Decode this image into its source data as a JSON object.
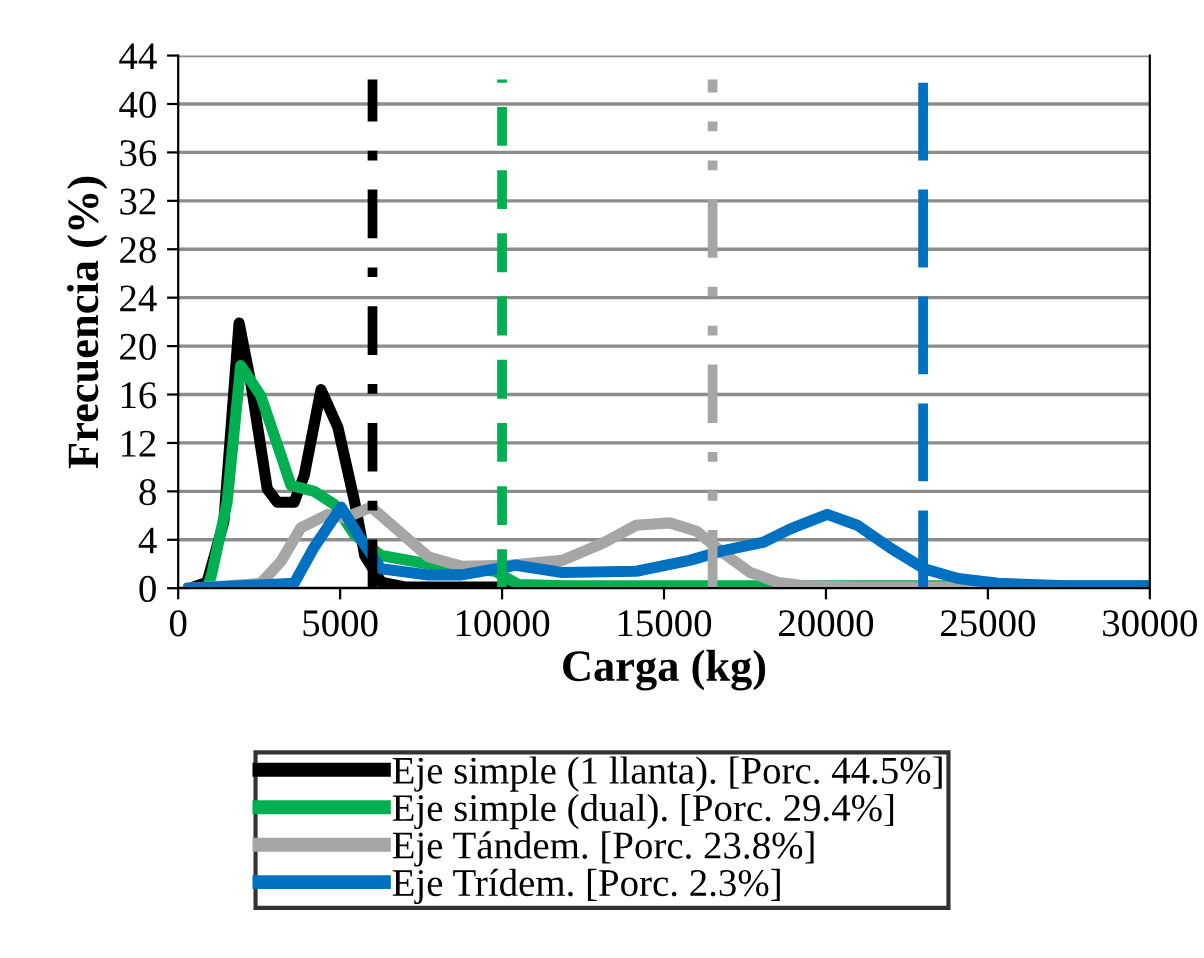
{
  "chart_data": {
    "type": "line",
    "xlabel": "Carga (kg)",
    "ylabel": "Frecuencia (%)",
    "xlim": [
      0,
      30000
    ],
    "ylim": [
      0,
      44
    ],
    "xticks": [
      0,
      5000,
      10000,
      15000,
      20000,
      25000,
      30000
    ],
    "yticks": [
      0,
      4,
      8,
      12,
      16,
      20,
      24,
      28,
      32,
      36,
      40,
      44
    ],
    "grid": "y",
    "legend": "bottom",
    "marker": "none",
    "line_style": "solid",
    "series": [
      {
        "name": "Eje simple (1 llanta). [Porc. 44.5%]",
        "color": "#000000",
        "x": [
          370,
          890,
          1410,
          1880,
          2240,
          2750,
          3060,
          3580,
          3890,
          4410,
          4930,
          5450,
          5760,
          6270,
          7000,
          10000,
          11000,
          30000
        ],
        "values": [
          0,
          0.5,
          5.5,
          21.9,
          17,
          8.2,
          7.1,
          7.1,
          9.3,
          16.4,
          13.3,
          7.1,
          2.7,
          0.5,
          0.1,
          0.1,
          0,
          0
        ]
      },
      {
        "name": "Eje simple (dual). [Porc. 29.4%]",
        "color": "#00b050",
        "x": [
          370,
          890,
          1030,
          1510,
          1930,
          2550,
          3170,
          3480,
          4200,
          4830,
          5450,
          6270,
          7720,
          9790,
          10500,
          12000,
          30000
        ],
        "values": [
          0,
          0,
          1.1,
          7.1,
          18.4,
          15.9,
          11,
          8.5,
          8,
          6.9,
          4.4,
          2.7,
          2,
          1.4,
          0.3,
          0.2,
          0.2
        ]
      },
      {
        "name": "Eje Tándem. [Porc. 23.8%]",
        "color": "#a6a6a6",
        "x": [
          370,
          2550,
          3170,
          3790,
          4620,
          5140,
          5960,
          6690,
          7720,
          8760,
          10190,
          11860,
          13100,
          14140,
          15180,
          16010,
          16830,
          17660,
          18490,
          19320,
          21000,
          30000
        ],
        "values": [
          0,
          0.4,
          2.2,
          5,
          6.1,
          5.8,
          6.7,
          5,
          2.6,
          1.8,
          1.9,
          2.3,
          3.7,
          5.2,
          5.4,
          4.7,
          2.9,
          1.3,
          0.5,
          0.2,
          0.1,
          0.1
        ]
      },
      {
        "name": "Eje Trídem. [Porc. 2.3%]",
        "color": "#0070c0",
        "x": [
          370,
          3580,
          4200,
          5030,
          5650,
          6270,
          7720,
          8760,
          10420,
          11860,
          14140,
          15790,
          16830,
          18070,
          18900,
          20040,
          20970,
          22000,
          23040,
          24080,
          25320,
          27390,
          30000
        ],
        "values": [
          0,
          0.4,
          3.4,
          6.7,
          4,
          1.6,
          1.1,
          1.1,
          1.9,
          1.3,
          1.4,
          2.3,
          3.1,
          3.8,
          4.9,
          6.1,
          5.2,
          3.3,
          1.6,
          0.8,
          0.4,
          0.2,
          0.2
        ]
      }
    ],
    "ref_lines": [
      {
        "axis": "x",
        "value": 6000,
        "color": "#000000",
        "line_style": "dashdot"
      },
      {
        "axis": "x",
        "value": 10000,
        "color": "#00b050",
        "line_style": "dashed"
      },
      {
        "axis": "x",
        "value": 16500,
        "color": "#a6a6a6",
        "line_style": "dashdotdot"
      },
      {
        "axis": "x",
        "value": 23000,
        "color": "#0070c0",
        "line_style": "longdash"
      }
    ]
  }
}
